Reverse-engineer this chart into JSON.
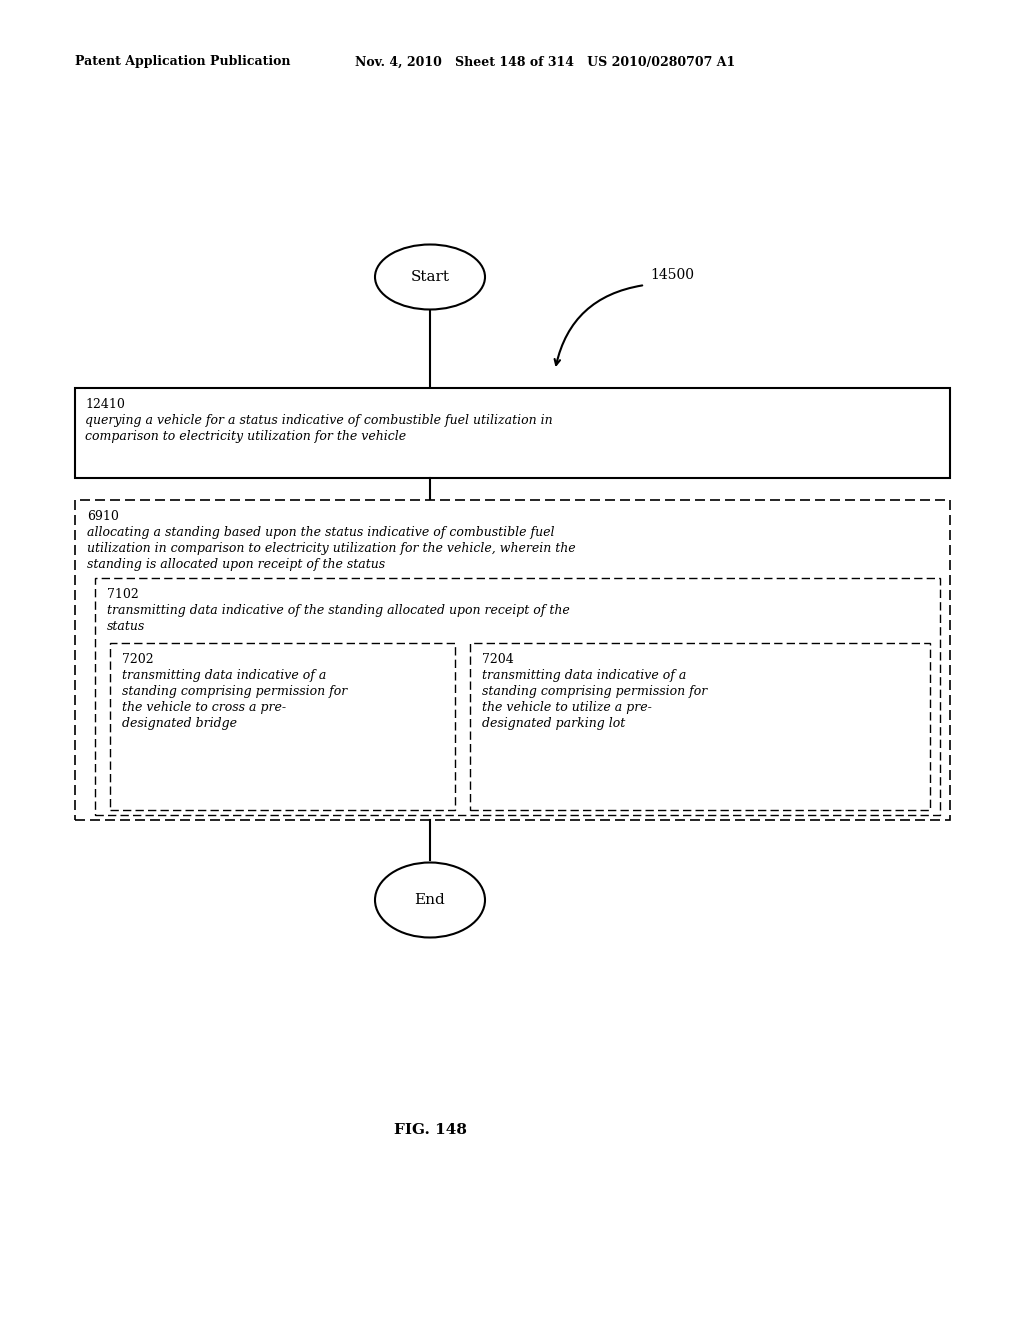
{
  "header_left": "Patent Application Publication",
  "header_middle": "Nov. 4, 2010   Sheet 148 of 314   US 2010/0280707 A1",
  "fig_label": "FIG. 148",
  "flow_label": "14500",
  "start_label": "Start",
  "end_label": "End",
  "box1_id": "12410",
  "box1_line1": "querying a vehicle for a status indicative of combustible fuel utilization in",
  "box1_line2": "comparison to electricity utilization for the vehicle",
  "box2_id": "6910",
  "box2_line1": "allocating a standing based upon the status indicative of combustible fuel",
  "box2_line2": "utilization in comparison to electricity utilization for the vehicle, wherein the",
  "box2_line3": "standing is allocated upon receipt of the status",
  "box3_id": "7102",
  "box3_line1": "transmitting data indicative of the standing allocated upon receipt of the",
  "box3_line2": "status",
  "box4_id": "7202",
  "box4_line1": "transmitting data indicative of a",
  "box4_line2": "standing comprising permission for",
  "box4_line3": "the vehicle to cross a pre-",
  "box4_line4": "designated bridge",
  "box5_id": "7204",
  "box5_line1": "transmitting data indicative of a",
  "box5_line2": "standing comprising permission for",
  "box5_line3": "the vehicle to utilize a pre-",
  "box5_line4": "designated parking lot",
  "bg_color": "#ffffff",
  "text_color": "#000000"
}
